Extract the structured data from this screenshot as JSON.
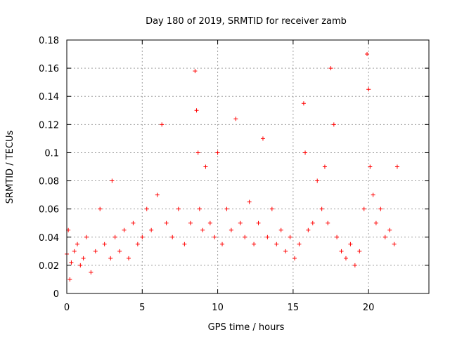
{
  "chart_data": {
    "type": "scatter",
    "title": "Day 180 of 2019, SRMTID for receiver zamb",
    "xlabel": "GPS time / hours",
    "ylabel": "SRMTID / TECUs",
    "xlim": [
      0,
      24
    ],
    "ylim": [
      0,
      0.18
    ],
    "x_ticks": [
      0,
      5,
      10,
      15,
      20
    ],
    "x_tick_labels": [
      "0",
      "5",
      "10",
      "15",
      "20"
    ],
    "y_ticks": [
      0,
      0.02,
      0.04,
      0.06,
      0.08,
      0.1,
      0.12,
      0.14,
      0.16,
      0.18
    ],
    "y_tick_labels": [
      "0",
      "0.02",
      "0.04",
      "0.06",
      "0.08",
      "0.1",
      "0.12",
      "0.14",
      "0.16",
      "0.18"
    ],
    "grid": true,
    "marker": "+",
    "marker_color": "#ff0000",
    "series": [
      {
        "name": "SRMTID",
        "points_note": "approximate envelope of dense scatter, sampled",
        "x": [
          0.0,
          0.1,
          0.2,
          0.3,
          0.5,
          0.7,
          0.9,
          1.1,
          1.3,
          1.6,
          1.9,
          2.2,
          2.5,
          2.9,
          3.0,
          3.2,
          3.5,
          3.8,
          4.1,
          4.4,
          4.7,
          5.0,
          5.3,
          5.6,
          6.0,
          6.3,
          6.6,
          7.0,
          7.4,
          7.8,
          8.2,
          8.5,
          8.6,
          8.7,
          8.8,
          9.0,
          9.2,
          9.5,
          9.8,
          10.0,
          10.3,
          10.6,
          10.9,
          11.2,
          11.5,
          11.8,
          12.1,
          12.4,
          12.7,
          13.0,
          13.3,
          13.6,
          13.9,
          14.2,
          14.5,
          14.8,
          15.1,
          15.4,
          15.7,
          15.8,
          16.0,
          16.3,
          16.6,
          16.9,
          17.1,
          17.3,
          17.5,
          17.7,
          17.9,
          18.2,
          18.5,
          18.8,
          19.1,
          19.4,
          19.7,
          19.9,
          20.0,
          20.1,
          20.3,
          20.5,
          20.8,
          21.1,
          21.4,
          21.7,
          21.9
        ],
        "y": [
          0.028,
          0.045,
          0.01,
          0.022,
          0.03,
          0.035,
          0.02,
          0.025,
          0.04,
          0.015,
          0.03,
          0.06,
          0.035,
          0.025,
          0.08,
          0.04,
          0.03,
          0.045,
          0.025,
          0.05,
          0.035,
          0.04,
          0.06,
          0.045,
          0.07,
          0.12,
          0.05,
          0.04,
          0.06,
          0.035,
          0.05,
          0.158,
          0.13,
          0.1,
          0.06,
          0.045,
          0.09,
          0.05,
          0.04,
          0.1,
          0.035,
          0.06,
          0.045,
          0.124,
          0.05,
          0.04,
          0.065,
          0.035,
          0.05,
          0.11,
          0.04,
          0.06,
          0.035,
          0.045,
          0.03,
          0.04,
          0.025,
          0.035,
          0.135,
          0.1,
          0.045,
          0.05,
          0.08,
          0.06,
          0.09,
          0.05,
          0.16,
          0.12,
          0.04,
          0.03,
          0.025,
          0.035,
          0.02,
          0.03,
          0.06,
          0.17,
          0.145,
          0.09,
          0.07,
          0.05,
          0.06,
          0.04,
          0.045,
          0.035,
          0.09
        ]
      }
    ]
  }
}
